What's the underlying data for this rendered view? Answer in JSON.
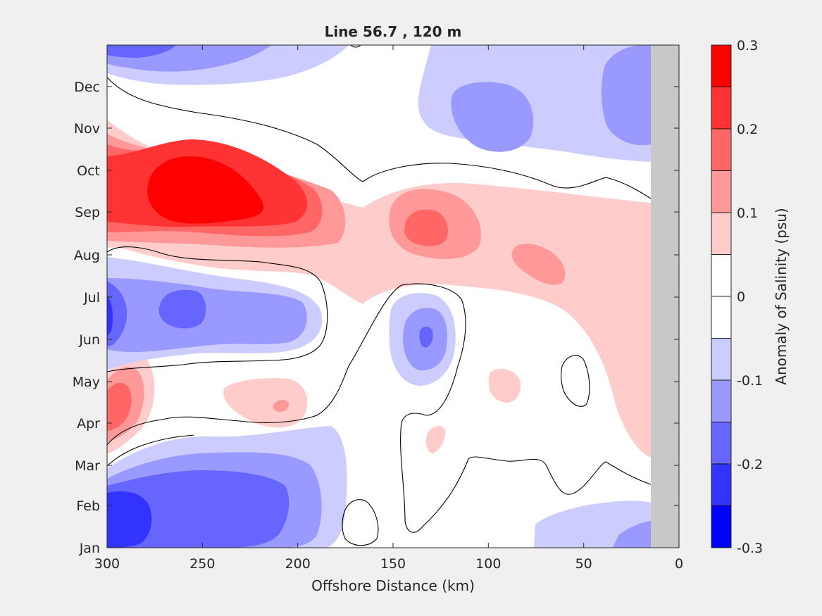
{
  "chart_data": {
    "type": "heatmap",
    "subtype": "filled-contour",
    "title": "Line 56.7 , 120 m",
    "xlabel": "Offshore Distance (km)",
    "ylabel": "",
    "xlim": [
      300,
      0
    ],
    "x_direction": "reversed",
    "x_ticks": [
      "300",
      "250",
      "200",
      "150",
      "100",
      "50",
      "0"
    ],
    "y_ticks": [
      "Jan",
      "Feb",
      "Mar",
      "Apr",
      "May",
      "Jun",
      "Jul",
      "Aug",
      "Sep",
      "Oct",
      "Nov",
      "Dec"
    ],
    "colorbar": {
      "label": "Anomaly of Salinity (psu)",
      "range": [
        -0.3,
        0.3
      ],
      "tick_labels": [
        "0.3",
        "0.2",
        "0.1",
        "0",
        "-0.1",
        "-0.2",
        "-0.3"
      ],
      "levels": [
        {
          "range": [
            0.25,
            0.3
          ],
          "color": "#ff0000"
        },
        {
          "range": [
            0.2,
            0.25
          ],
          "color": "#ff3333"
        },
        {
          "range": [
            0.15,
            0.2
          ],
          "color": "#ff6666"
        },
        {
          "range": [
            0.1,
            0.15
          ],
          "color": "#ff9999"
        },
        {
          "range": [
            0.05,
            0.1
          ],
          "color": "#ffcccc"
        },
        {
          "range": [
            0.0,
            0.05
          ],
          "color": "#ffffff"
        },
        {
          "range": [
            -0.05,
            0.0
          ],
          "color": "#ffffff"
        },
        {
          "range": [
            -0.1,
            -0.05
          ],
          "color": "#ccccff"
        },
        {
          "range": [
            -0.15,
            -0.1
          ],
          "color": "#9999ff"
        },
        {
          "range": [
            -0.2,
            -0.15
          ],
          "color": "#6666ff"
        },
        {
          "range": [
            -0.25,
            -0.2
          ],
          "color": "#3333ff"
        },
        {
          "range": [
            -0.3,
            -0.25
          ],
          "color": "#0000ff"
        }
      ]
    },
    "no_data_region_km": [
      0,
      15
    ],
    "no_data_color": "#c8c8c8",
    "contour_line_level": 0.0,
    "features": [
      {
        "month": "Sep-Oct",
        "km": "200-300",
        "anomaly": 0.3
      },
      {
        "month": "Jul",
        "km": "220-300",
        "anomaly": -0.2
      },
      {
        "month": "Jan-Feb",
        "km": "200-300",
        "anomaly": -0.25
      },
      {
        "month": "Jun",
        "km": "125-145",
        "anomaly": -0.2
      },
      {
        "month": "Sep",
        "km": "120-150",
        "anomaly": 0.15
      },
      {
        "month": "Apr-May",
        "km": "280-300",
        "anomaly": 0.2
      }
    ]
  }
}
